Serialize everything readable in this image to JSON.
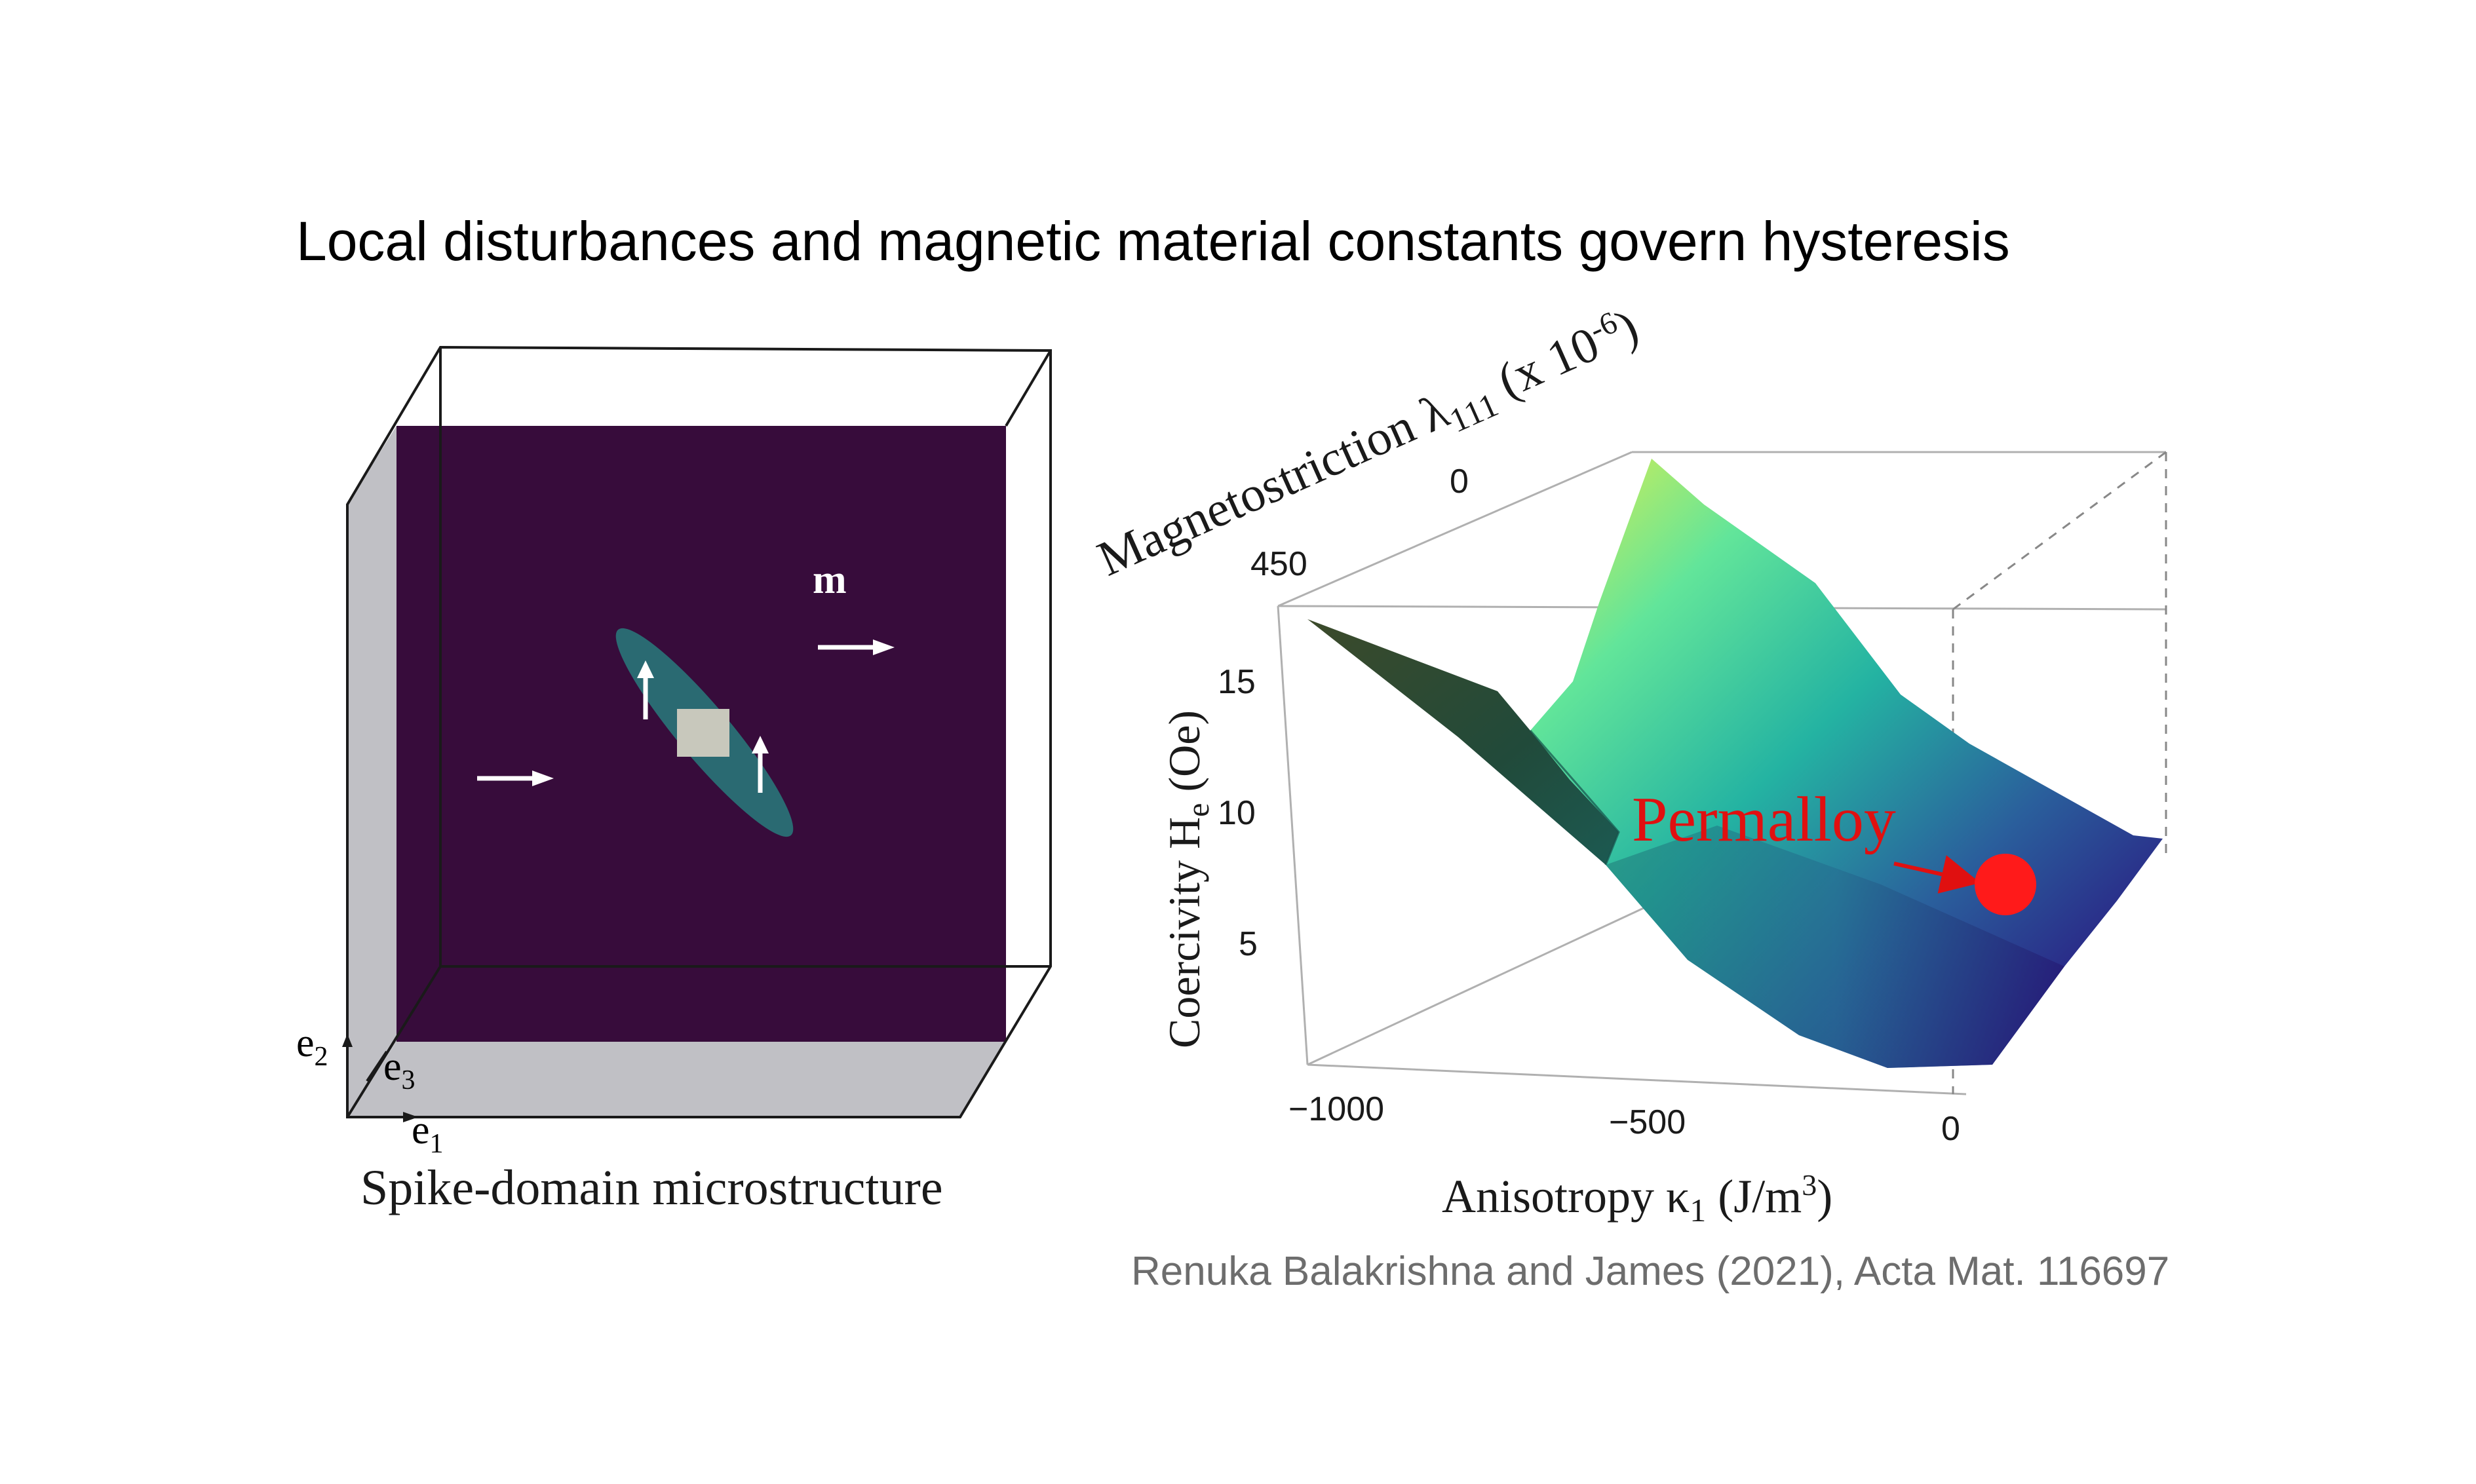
{
  "title": "Local disturbances and magnetic material constants govern hysteresis",
  "citation": "Renuka Balakrishna and James (2021), Acta Mat. 116697",
  "microstructure": {
    "caption": "Spike-domain microstructure",
    "magnetization_label": "m",
    "axes": {
      "e1": "e",
      "e1_sub": "1",
      "e2": "e",
      "e2_sub": "2",
      "e3": "e",
      "e3_sub": "3"
    },
    "colors": {
      "domain_bg": "#370c3b",
      "spike": "#2a6a72",
      "defect": "#c8c8bc",
      "side_face": "#c0c0c5"
    }
  },
  "surface_plot": {
    "xlabel_main": "Anisotropy κ",
    "xlabel_sub": "1",
    "xlabel_unit": " (J/m",
    "xlabel_unit_sup": "3",
    "xlabel_close": ")",
    "ylabel_main": "Magnetostriction λ",
    "ylabel_sub": "111",
    "ylabel_unit": " (x 10",
    "ylabel_unit_sup": "-6",
    "ylabel_close": ")",
    "zlabel_main": "Coercivity H",
    "zlabel_sub": "e",
    "zlabel_unit": " (Oe)",
    "x_ticks": [
      "−1000",
      "−500",
      "0"
    ],
    "y_ticks": [
      "450",
      "0"
    ],
    "z_ticks": [
      "15",
      "10",
      "5"
    ],
    "annotation": "Permalloy",
    "marker_color": "#ff1a1a",
    "colormap": [
      "#fde725",
      "#5ec962",
      "#21918c",
      "#3b528b",
      "#30106b"
    ]
  }
}
